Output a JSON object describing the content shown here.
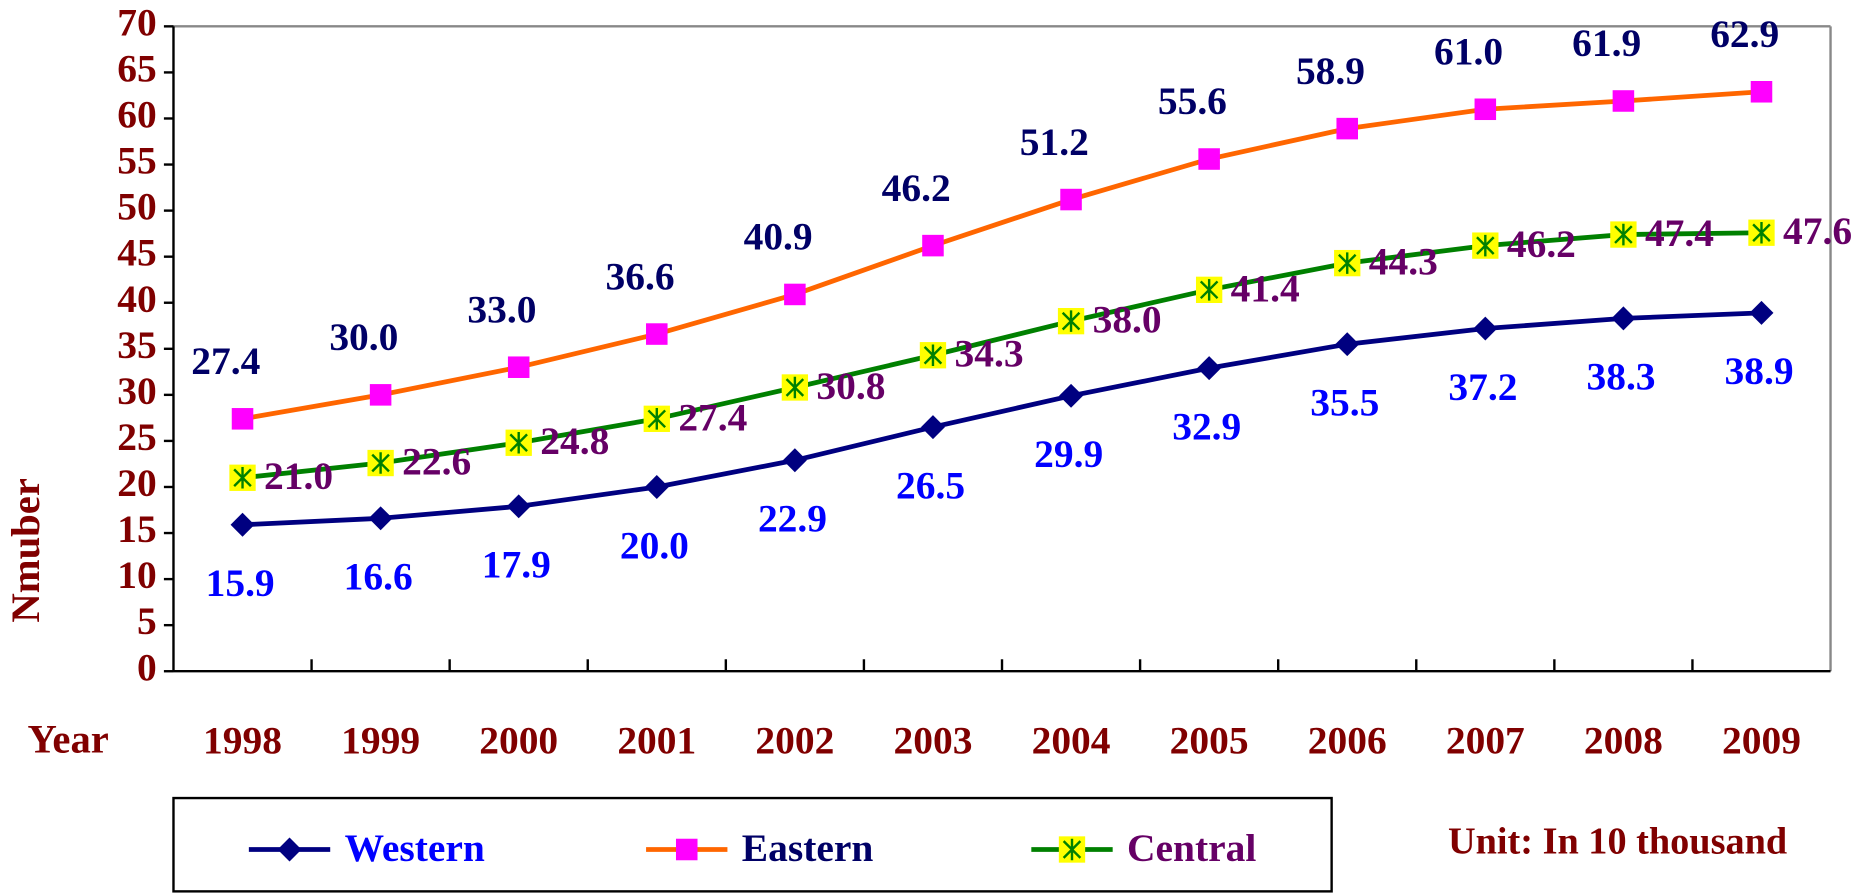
{
  "chart_data": {
    "type": "line",
    "x_label": "Year",
    "y_label": "Nmuber",
    "annotation": "Unit: In 10 thousand",
    "categories": [
      "1998",
      "1999",
      "2000",
      "2001",
      "2002",
      "2003",
      "2004",
      "2005",
      "2006",
      "2007",
      "2008",
      "2009"
    ],
    "series": [
      {
        "name": "Western",
        "color": "#000080",
        "marker": "diamond",
        "marker_color": "#000080",
        "label_color": "#0000ff",
        "label_position": "below",
        "values": [
          15.9,
          16.6,
          17.9,
          20.0,
          22.9,
          26.5,
          29.9,
          32.9,
          35.5,
          37.2,
          38.3,
          38.9
        ],
        "value_labels": [
          "15.9",
          "16.6",
          "17.9",
          "20.0",
          "22.9",
          "26.5",
          "29.9",
          "32.9",
          "35.5",
          "37.2",
          "38.3",
          "38.9"
        ]
      },
      {
        "name": "Eastern",
        "color": "#ff6600",
        "marker": "square",
        "marker_color": "#ff00ff",
        "label_color": "#000066",
        "label_position": "above",
        "values": [
          27.4,
          30.0,
          33.0,
          36.6,
          40.9,
          46.2,
          51.2,
          55.6,
          58.9,
          61.0,
          61.9,
          62.9
        ],
        "value_labels": [
          "27.4",
          "30.0",
          "33.0",
          "36.6",
          "40.9",
          "46.2",
          "51.2",
          "55.6",
          "58.9",
          "61.0",
          "61.9",
          "62.9"
        ]
      },
      {
        "name": "Central",
        "color": "#008000",
        "marker": "star-square",
        "marker_color": "#ffff00",
        "label_color": "#660066",
        "label_position": "right",
        "values": [
          21.0,
          22.6,
          24.8,
          27.4,
          30.8,
          34.3,
          38.0,
          41.4,
          44.3,
          46.2,
          47.4,
          47.6
        ],
        "value_labels": [
          "21.0",
          "22.6",
          "24.8",
          "27.4",
          "30.8",
          "34.3",
          "38.0",
          "41.4",
          "44.3",
          "46.2",
          "47.4",
          "47.6"
        ]
      }
    ],
    "ylim": [
      0,
      70
    ],
    "yticks": [
      0,
      5,
      10,
      15,
      20,
      25,
      30,
      35,
      40,
      45,
      50,
      55,
      60,
      65,
      70
    ],
    "axis_color": "#800000"
  }
}
